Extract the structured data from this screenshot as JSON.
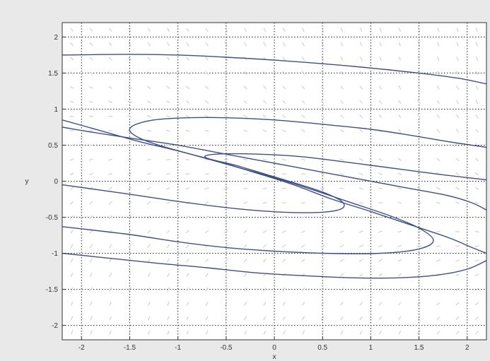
{
  "chart_data": {
    "type": "line",
    "title": "",
    "xlabel": "x",
    "ylabel": "y",
    "xlim": [
      -2.2,
      2.2
    ],
    "ylim": [
      -2.2,
      2.2
    ],
    "xticks": [
      -2,
      -1.5,
      -1,
      -0.5,
      0,
      0.5,
      1,
      1.5,
      2
    ],
    "yticks": [
      -2,
      -1.5,
      -1,
      -0.5,
      0,
      0.5,
      1,
      1.5,
      2
    ],
    "xtick_labels": [
      "-2",
      "-1.5",
      "-1",
      "-0.5",
      "0",
      "0.5",
      "1",
      "1.5",
      "2"
    ],
    "ytick_labels": [
      "-2",
      "-1.5",
      "-1",
      "-0.5",
      "0",
      "0.5",
      "1",
      "1.5",
      "2"
    ],
    "grid": true,
    "grid_style": "dotted",
    "line_color": "#3d4f86",
    "vector_color": "#c8c8c8",
    "vector_field": true,
    "series": [
      {
        "points": [
          [
            -2.2,
            1.75
          ],
          [
            -1.5,
            1.76
          ],
          [
            -1.0,
            1.75
          ],
          [
            -0.5,
            1.72
          ],
          [
            0,
            1.68
          ],
          [
            0.5,
            1.63
          ],
          [
            1.0,
            1.57
          ],
          [
            1.5,
            1.5
          ],
          [
            1.9,
            1.43
          ],
          [
            2.2,
            1.35
          ]
        ]
      },
      {
        "points": [
          [
            2.2,
            0.47
          ],
          [
            1.8,
            0.55
          ],
          [
            1.4,
            0.64
          ],
          [
            1.0,
            0.72
          ],
          [
            0.5,
            0.79
          ],
          [
            0,
            0.85
          ],
          [
            -0.5,
            0.88
          ],
          [
            -0.9,
            0.88
          ],
          [
            -1.25,
            0.85
          ],
          [
            -1.45,
            0.78
          ],
          [
            -1.5,
            0.7
          ],
          [
            -1.4,
            0.6
          ],
          [
            -1.2,
            0.5
          ],
          [
            -0.8,
            0.35
          ],
          [
            -0.4,
            0.2
          ],
          [
            0,
            0.05
          ],
          [
            0.4,
            -0.12
          ],
          [
            0.8,
            -0.3
          ],
          [
            1.2,
            -0.48
          ],
          [
            1.5,
            -0.65
          ],
          [
            1.65,
            -0.82
          ],
          [
            1.5,
            -0.94
          ],
          [
            1.1,
            -1.0
          ],
          [
            0.5,
            -1.0
          ],
          [
            0,
            -0.97
          ],
          [
            -0.5,
            -0.92
          ],
          [
            -1.0,
            -0.84
          ],
          [
            -1.5,
            -0.74
          ],
          [
            -2.2,
            -0.63
          ]
        ]
      },
      {
        "points": [
          [
            2.2,
            0.02
          ],
          [
            1.8,
            0.08
          ],
          [
            1.4,
            0.15
          ],
          [
            1.0,
            0.22
          ],
          [
            0.6,
            0.29
          ],
          [
            0.2,
            0.35
          ],
          [
            -0.3,
            0.38
          ],
          [
            -0.65,
            0.37
          ],
          [
            -0.7,
            0.32
          ],
          [
            -0.4,
            0.22
          ],
          [
            -0.1,
            0.1
          ],
          [
            0.2,
            -0.02
          ],
          [
            0.5,
            -0.15
          ],
          [
            0.7,
            -0.28
          ],
          [
            0.7,
            -0.38
          ],
          [
            0.5,
            -0.43
          ],
          [
            0.1,
            -0.43
          ],
          [
            -0.4,
            -0.38
          ],
          [
            -1.0,
            -0.28
          ],
          [
            -1.5,
            -0.18
          ],
          [
            -2.2,
            -0.05
          ]
        ]
      },
      {
        "points": [
          [
            -2.2,
            0.85
          ],
          [
            -1.8,
            0.7
          ],
          [
            -1.4,
            0.55
          ],
          [
            -1.0,
            0.42
          ],
          [
            -0.6,
            0.28
          ],
          [
            -0.2,
            0.12
          ],
          [
            0.2,
            -0.05
          ],
          [
            0.6,
            -0.25
          ],
          [
            1.0,
            -0.42
          ],
          [
            1.4,
            -0.6
          ],
          [
            1.8,
            -0.78
          ],
          [
            2.05,
            -0.92
          ],
          [
            2.2,
            -1.0
          ]
        ]
      },
      {
        "points": [
          [
            2.2,
            -0.4
          ],
          [
            2.05,
            -0.3
          ],
          [
            1.8,
            -0.2
          ],
          [
            1.4,
            -0.1
          ],
          [
            1.0,
            0.0
          ],
          [
            0.6,
            0.1
          ],
          [
            0.2,
            0.2
          ],
          [
            -0.2,
            0.3
          ],
          [
            -0.6,
            0.4
          ],
          [
            -1.0,
            0.5
          ],
          [
            -1.4,
            0.58
          ],
          [
            -1.8,
            0.66
          ],
          [
            -2.2,
            0.75
          ]
        ]
      },
      {
        "points": [
          [
            2.2,
            -1.1
          ],
          [
            2.0,
            -1.22
          ],
          [
            1.7,
            -1.3
          ],
          [
            1.3,
            -1.34
          ],
          [
            0.8,
            -1.34
          ],
          [
            0.3,
            -1.31
          ],
          [
            -0.2,
            -1.27
          ],
          [
            -0.7,
            -1.2
          ],
          [
            -1.2,
            -1.14
          ],
          [
            -1.7,
            -1.07
          ],
          [
            -2.2,
            -1.0
          ]
        ]
      }
    ]
  }
}
